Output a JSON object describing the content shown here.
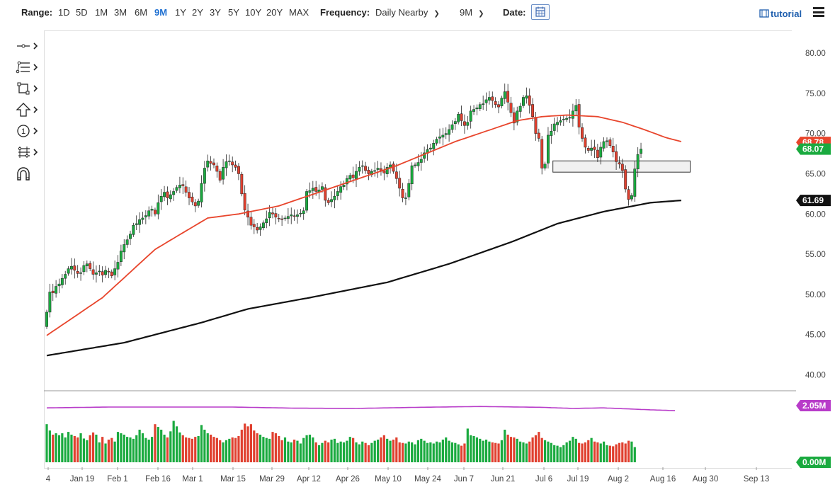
{
  "toolbar": {
    "range_label": "Range:",
    "ranges": [
      "1D",
      "5D",
      "1M",
      "3M",
      "6M",
      "9M",
      "1Y",
      "2Y",
      "3Y",
      "5Y",
      "10Y",
      "20Y",
      "MAX"
    ],
    "active_range": "9M",
    "frequency_label": "Frequency:",
    "frequency_value": "Daily Nearby",
    "period_value": "9M",
    "date_label": "Date:",
    "tutorial_label": "tutorial",
    "calendar_icon": "calendar-icon",
    "menu_icon": "hamburger-menu-icon"
  },
  "drawing_tools": [
    "line-tool-icon",
    "fib-levels-icon",
    "rectangle-tool-icon",
    "arrow-up-icon",
    "number-marker-icon",
    "pitchfork-icon",
    "magnet-icon"
  ],
  "colors": {
    "up": "#1aaa3f",
    "down": "#e0402f",
    "ma_fast": "#e8452c",
    "ma_slow": "#111111",
    "volume_avg": "#b83cc9",
    "price_label_bg": "#1aaa3f"
  },
  "chart_data": {
    "type": "candlestick",
    "price_axis": {
      "ticks": [
        "80.00",
        "75.00",
        "70.00",
        "65.00",
        "60.00",
        "55.00",
        "50.00",
        "45.00",
        "40.00"
      ],
      "range": [
        38.2,
        82.2
      ]
    },
    "volume_axis": {
      "ticks": [
        "2.05M",
        "0.00M"
      ]
    },
    "x_labels": [
      "4",
      "Jan 19",
      "Feb 1",
      "Feb 16",
      "Mar 1",
      "Mar 15",
      "Mar 29",
      "Apr 12",
      "Apr 26",
      "May 10",
      "May 24",
      "Jun 7",
      "Jun 21",
      "Jul 6",
      "Jul 19",
      "Aug 2",
      "Aug 16",
      "Aug 30",
      "Sep 13"
    ],
    "last_price": "68.07",
    "ma_fast_last": "68.78",
    "ma_slow_last": "61.69",
    "closes": [
      47.8,
      50.3,
      50.2,
      51.0,
      51.3,
      52.0,
      52.5,
      53.2,
      53.5,
      53.0,
      52.6,
      52.7,
      53.6,
      53.8,
      53.2,
      52.5,
      52.7,
      52.9,
      52.4,
      53.0,
      52.8,
      52.3,
      53.2,
      54.0,
      55.4,
      56.2,
      56.8,
      57.5,
      58.6,
      58.8,
      59.3,
      59.5,
      59.8,
      60.4,
      60.6,
      60.0,
      61.4,
      62.2,
      62.7,
      62.0,
      62.4,
      62.8,
      63.3,
      63.6,
      63.5,
      62.7,
      62.0,
      61.5,
      61.0,
      61.6,
      63.8,
      65.7,
      66.6,
      66.3,
      66.1,
      65.3,
      64.2,
      65.8,
      66.5,
      66.6,
      66.1,
      65.8,
      65.0,
      62.5,
      60.5,
      59.6,
      58.6,
      58.4,
      58.0,
      58.4,
      58.9,
      59.4,
      60.2,
      60.0,
      59.6,
      59.4,
      59.3,
      59.5,
      59.7,
      59.9,
      59.7,
      59.9,
      60.1,
      60.4,
      62.8,
      62.9,
      63.2,
      62.8,
      63.0,
      63.4,
      61.7,
      61.4,
      61.8,
      62.2,
      62.8,
      63.4,
      63.6,
      64.4,
      64.8,
      64.5,
      65.3,
      65.8,
      66.0,
      65.4,
      65.0,
      65.3,
      65.4,
      65.7,
      65.3,
      65.1,
      65.8,
      66.1,
      65.3,
      64.4,
      63.2,
      62.0,
      62.0,
      63.8,
      66.0,
      66.1,
      66.4,
      66.8,
      67.6,
      68.0,
      68.2,
      68.8,
      69.3,
      69.6,
      69.8,
      70.0,
      70.5,
      71.1,
      71.5,
      72.4,
      71.6,
      71.0,
      71.4,
      72.8,
      73.0,
      73.2,
      73.6,
      73.7,
      74.2,
      74.5,
      74.1,
      73.6,
      73.3,
      74.4,
      75.2,
      73.9,
      72.6,
      71.3,
      72.8,
      73.4,
      74.5,
      74.7,
      73.5,
      72.1,
      70.0,
      69.4,
      65.7,
      66.2,
      69.8,
      70.3,
      71.2,
      71.4,
      71.6,
      71.8,
      71.9,
      72.0,
      72.8,
      73.5,
      70.8,
      69.4,
      68.3,
      67.9,
      68.2,
      68.0,
      67.0,
      68.3,
      69.0,
      69.1,
      68.5,
      67.7,
      66.5,
      66.2,
      65.4,
      63.1,
      61.8,
      62.3,
      65.6,
      67.4,
      68.07
    ],
    "volumes": [
      1.38,
      1.15,
      1.0,
      1.05,
      0.98,
      1.05,
      0.9,
      1.1,
      1.0,
      0.95,
      0.9,
      1.05,
      0.86,
      0.8,
      0.98,
      1.08,
      1.0,
      0.72,
      0.92,
      0.68,
      0.82,
      0.88,
      0.75,
      1.1,
      1.05,
      1.0,
      0.92,
      0.9,
      0.85,
      0.98,
      1.18,
      1.05,
      0.88,
      0.82,
      0.92,
      1.38,
      1.28,
      1.18,
      1.0,
      0.9,
      1.12,
      1.5,
      1.3,
      1.08,
      0.98,
      0.9,
      0.88,
      0.85,
      0.92,
      0.95,
      1.35,
      1.18,
      1.05,
      1.0,
      0.92,
      0.88,
      0.8,
      0.72,
      0.8,
      0.85,
      0.9,
      0.88,
      0.95,
      1.18,
      1.4,
      1.3,
      1.38,
      1.15,
      1.05,
      1.0,
      0.92,
      0.88,
      0.85,
      1.1,
      1.05,
      0.95,
      0.8,
      0.9,
      0.75,
      0.72,
      0.82,
      0.78,
      0.68,
      0.88,
      0.98,
      1.0,
      0.9,
      0.72,
      0.62,
      0.7,
      0.78,
      0.72,
      0.82,
      0.85,
      0.7,
      0.75,
      0.72,
      0.78,
      0.92,
      0.88,
      0.72,
      0.65,
      0.75,
      0.7,
      0.62,
      0.7,
      0.78,
      0.82,
      0.9,
      0.98,
      0.85,
      0.78,
      0.82,
      0.9,
      0.72,
      0.7,
      0.68,
      0.75,
      0.72,
      0.65,
      0.8,
      0.85,
      0.78,
      0.7,
      0.72,
      0.68,
      0.75,
      0.72,
      0.82,
      0.9,
      0.78,
      0.72,
      0.7,
      0.65,
      0.6,
      0.68,
      1.22,
      0.98,
      0.95,
      0.9,
      0.85,
      0.78,
      0.82,
      0.75,
      0.72,
      0.7,
      0.68,
      0.8,
      1.18,
      1.0,
      0.92,
      0.9,
      0.85,
      0.75,
      0.72,
      0.68,
      0.75,
      0.9,
      0.98,
      1.1,
      0.88,
      0.8,
      0.75,
      0.7,
      0.62,
      0.6,
      0.55,
      0.62,
      0.72,
      0.78,
      0.92,
      0.85,
      0.7,
      0.68,
      0.72,
      0.8,
      0.88,
      0.75,
      0.72,
      0.68,
      0.75,
      0.62,
      0.6,
      0.58,
      0.65,
      0.7,
      0.72,
      0.68,
      0.78,
      0.75,
      0.55
    ],
    "ma_fast": {
      "name": "",
      "values": [
        [
          0,
          44.9
        ],
        [
          18,
          49.6
        ],
        [
          35,
          55.6
        ],
        [
          52,
          59.5
        ],
        [
          62,
          60.0
        ],
        [
          75,
          61.0
        ],
        [
          94,
          63.5
        ],
        [
          113,
          66.0
        ],
        [
          132,
          69.0
        ],
        [
          152,
          71.6
        ],
        [
          160,
          72.1
        ],
        [
          168,
          72.3
        ],
        [
          178,
          72.1
        ],
        [
          186,
          71.4
        ],
        [
          193,
          70.5
        ],
        [
          200,
          69.5
        ],
        [
          205,
          69.0
        ]
      ]
    },
    "ma_slow": {
      "name": "",
      "values": [
        [
          0,
          42.4
        ],
        [
          25,
          44.0
        ],
        [
          50,
          46.5
        ],
        [
          65,
          48.2
        ],
        [
          85,
          49.6
        ],
        [
          110,
          51.5
        ],
        [
          130,
          53.8
        ],
        [
          150,
          56.5
        ],
        [
          165,
          58.8
        ],
        [
          180,
          60.3
        ],
        [
          195,
          61.4
        ],
        [
          205,
          61.69
        ]
      ]
    },
    "volume_avg": {
      "name": "",
      "values": [
        [
          0,
          1.97
        ],
        [
          20,
          2.0
        ],
        [
          40,
          2.0
        ],
        [
          60,
          2.0
        ],
        [
          80,
          1.96
        ],
        [
          100,
          1.95
        ],
        [
          120,
          1.99
        ],
        [
          140,
          2.02
        ],
        [
          160,
          1.99
        ],
        [
          170,
          1.95
        ],
        [
          180,
          1.97
        ],
        [
          195,
          1.9
        ],
        [
          203,
          1.87
        ]
      ]
    },
    "support_zone": {
      "from_index": 164,
      "to_index": 207,
      "low": 65.2,
      "high": 66.6
    }
  }
}
